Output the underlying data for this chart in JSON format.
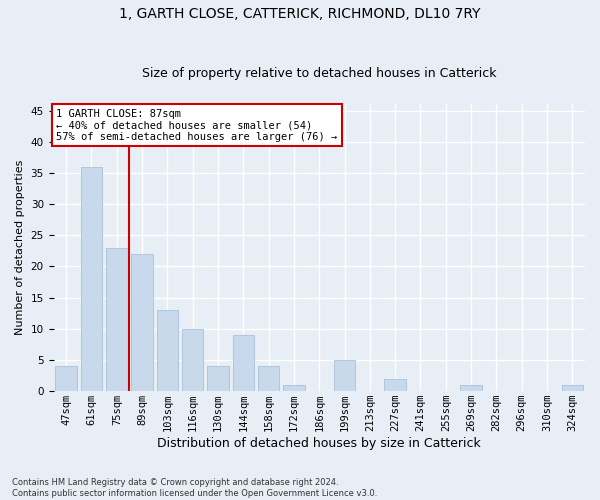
{
  "title1": "1, GARTH CLOSE, CATTERICK, RICHMOND, DL10 7RY",
  "title2": "Size of property relative to detached houses in Catterick",
  "xlabel": "Distribution of detached houses by size in Catterick",
  "ylabel": "Number of detached properties",
  "footnote": "Contains HM Land Registry data © Crown copyright and database right 2024.\nContains public sector information licensed under the Open Government Licence v3.0.",
  "categories": [
    "47sqm",
    "61sqm",
    "75sqm",
    "89sqm",
    "103sqm",
    "116sqm",
    "130sqm",
    "144sqm",
    "158sqm",
    "172sqm",
    "186sqm",
    "199sqm",
    "213sqm",
    "227sqm",
    "241sqm",
    "255sqm",
    "269sqm",
    "282sqm",
    "296sqm",
    "310sqm",
    "324sqm"
  ],
  "values": [
    4,
    36,
    23,
    22,
    13,
    10,
    4,
    9,
    4,
    1,
    0,
    5,
    0,
    2,
    0,
    0,
    1,
    0,
    0,
    0,
    1
  ],
  "bar_color": "#c9d9ec",
  "bar_edge_color": "#a0b8d8",
  "vline_x_idx": 2,
  "vline_color": "#cc0000",
  "annotation_text": "1 GARTH CLOSE: 87sqm\n← 40% of detached houses are smaller (54)\n57% of semi-detached houses are larger (76) →",
  "annotation_box_color": "#ffffff",
  "annotation_box_edge": "#cc0000",
  "ylim": [
    0,
    46
  ],
  "yticks": [
    0,
    5,
    10,
    15,
    20,
    25,
    30,
    35,
    40,
    45
  ],
  "background_color": "#e8eef5",
  "grid_color": "#ffffff",
  "title1_fontsize": 10,
  "title2_fontsize": 9,
  "xlabel_fontsize": 9,
  "ylabel_fontsize": 8,
  "tick_fontsize": 7.5,
  "annotation_fontsize": 7.5
}
